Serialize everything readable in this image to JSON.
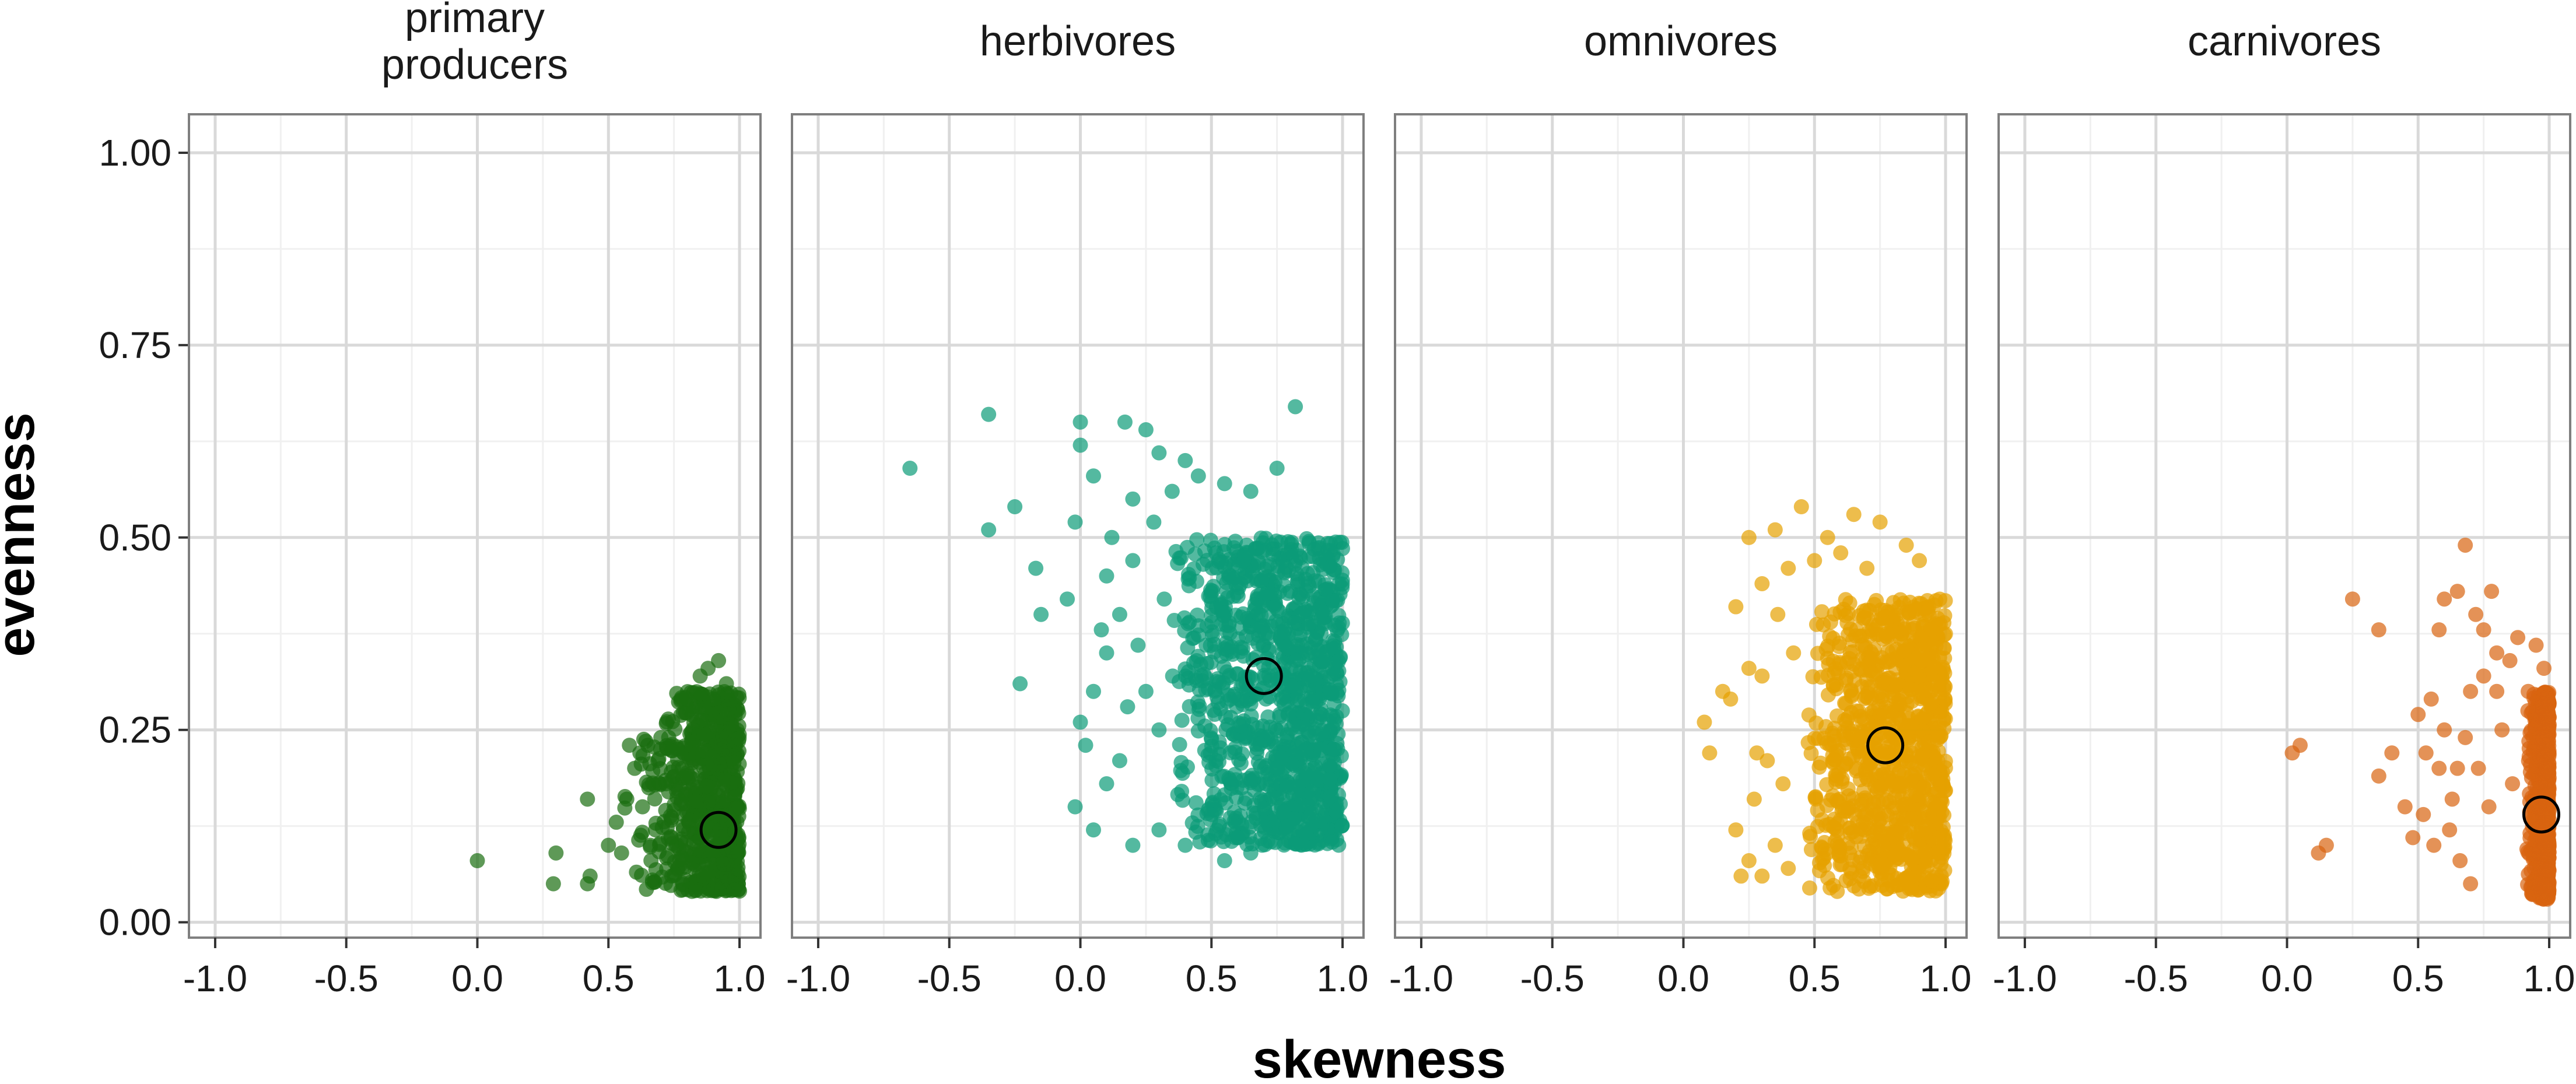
{
  "chart_data": {
    "type": "scatter",
    "xlabel": "skewness",
    "ylabel": "evenness",
    "xlim": [
      -1.1,
      1.08
    ],
    "ylim": [
      -0.02,
      1.05
    ],
    "x_ticks": [
      -1.0,
      -0.5,
      0.0,
      0.5,
      1.0
    ],
    "x_tick_labels": [
      "-1.0",
      "-0.5",
      "0.0",
      "0.5",
      "1.0"
    ],
    "y_ticks": [
      0.0,
      0.25,
      0.5,
      0.75,
      1.0
    ],
    "y_tick_labels": [
      "0.00",
      "0.25",
      "0.50",
      "0.75",
      "1.00"
    ],
    "grid": true,
    "point_opacity": 0.7,
    "facets": [
      {
        "title_lines": [
          "primary",
          "producers"
        ],
        "color": "#1a6e0f",
        "mean": {
          "x": 0.92,
          "y": 0.12
        },
        "cloud": {
          "n": 700,
          "x_min": 0.55,
          "x_max": 1.0,
          "y_min": 0.04,
          "y_max": 0.3,
          "x_skew": 0.4
        },
        "points": [
          [
            0.0,
            0.08
          ],
          [
            0.3,
            0.09
          ],
          [
            0.29,
            0.05
          ],
          [
            0.42,
            0.16
          ],
          [
            0.43,
            0.06
          ],
          [
            0.42,
            0.05
          ],
          [
            0.5,
            0.1
          ],
          [
            0.53,
            0.13
          ],
          [
            0.55,
            0.09
          ],
          [
            0.57,
            0.16
          ],
          [
            0.6,
            0.2
          ],
          [
            0.58,
            0.23
          ],
          [
            0.62,
            0.22
          ],
          [
            0.65,
            0.23
          ],
          [
            0.7,
            0.24
          ],
          [
            0.73,
            0.24
          ],
          [
            0.8,
            0.29
          ],
          [
            0.85,
            0.32
          ],
          [
            0.88,
            0.33
          ],
          [
            0.92,
            0.34
          ],
          [
            0.95,
            0.31
          ],
          [
            0.9,
            0.29
          ],
          [
            0.68,
            0.12
          ],
          [
            0.66,
            0.1
          ],
          [
            0.72,
            0.18
          ],
          [
            0.63,
            0.15
          ]
        ]
      },
      {
        "title_lines": [
          "herbivores"
        ],
        "color": "#0b9b78",
        "mean": {
          "x": 0.7,
          "y": 0.32
        },
        "cloud": {
          "n": 1100,
          "x_min": 0.35,
          "x_max": 1.0,
          "y_min": 0.1,
          "y_max": 0.5,
          "x_skew": 0.6
        },
        "points": [
          [
            -0.65,
            0.59
          ],
          [
            -0.35,
            0.66
          ],
          [
            -0.35,
            0.51
          ],
          [
            -0.25,
            0.54
          ],
          [
            -0.17,
            0.46
          ],
          [
            -0.15,
            0.4
          ],
          [
            -0.23,
            0.31
          ],
          [
            0.0,
            0.65
          ],
          [
            0.0,
            0.62
          ],
          [
            0.05,
            0.58
          ],
          [
            0.17,
            0.65
          ],
          [
            0.25,
            0.64
          ],
          [
            0.3,
            0.61
          ],
          [
            0.82,
            0.67
          ],
          [
            -0.02,
            0.52
          ],
          [
            -0.05,
            0.42
          ],
          [
            0.0,
            0.26
          ],
          [
            0.02,
            0.23
          ],
          [
            -0.02,
            0.15
          ],
          [
            0.05,
            0.12
          ],
          [
            0.1,
            0.18
          ],
          [
            0.15,
            0.21
          ],
          [
            0.2,
            0.1
          ],
          [
            0.3,
            0.12
          ],
          [
            0.4,
            0.1
          ],
          [
            0.5,
            0.14
          ],
          [
            0.55,
            0.08
          ],
          [
            0.6,
            0.11
          ],
          [
            0.65,
            0.09
          ],
          [
            0.1,
            0.35
          ],
          [
            0.15,
            0.4
          ],
          [
            0.2,
            0.47
          ],
          [
            0.05,
            0.3
          ],
          [
            0.25,
            0.3
          ],
          [
            0.3,
            0.25
          ],
          [
            0.2,
            0.55
          ],
          [
            0.1,
            0.45
          ],
          [
            0.35,
            0.56
          ],
          [
            0.45,
            0.58
          ],
          [
            0.55,
            0.57
          ],
          [
            0.65,
            0.56
          ],
          [
            0.75,
            0.59
          ],
          [
            0.4,
            0.6
          ],
          [
            0.12,
            0.5
          ],
          [
            0.28,
            0.52
          ],
          [
            0.08,
            0.38
          ],
          [
            0.32,
            0.42
          ],
          [
            0.18,
            0.28
          ],
          [
            0.22,
            0.36
          ]
        ]
      },
      {
        "title_lines": [
          "omnivores"
        ],
        "color": "#e6a100",
        "mean": {
          "x": 0.77,
          "y": 0.23
        },
        "cloud": {
          "n": 1000,
          "x_min": 0.45,
          "x_max": 1.0,
          "y_min": 0.04,
          "y_max": 0.42,
          "x_skew": 0.55
        },
        "points": [
          [
            0.08,
            0.26
          ],
          [
            0.1,
            0.22
          ],
          [
            0.15,
            0.3
          ],
          [
            0.2,
            0.41
          ],
          [
            0.25,
            0.5
          ],
          [
            0.3,
            0.44
          ],
          [
            0.35,
            0.51
          ],
          [
            0.45,
            0.54
          ],
          [
            0.55,
            0.5
          ],
          [
            0.65,
            0.53
          ],
          [
            0.75,
            0.52
          ],
          [
            0.85,
            0.49
          ],
          [
            0.9,
            0.47
          ],
          [
            0.2,
            0.12
          ],
          [
            0.25,
            0.08
          ],
          [
            0.22,
            0.06
          ],
          [
            0.3,
            0.06
          ],
          [
            0.35,
            0.1
          ],
          [
            0.4,
            0.07
          ],
          [
            0.3,
            0.32
          ],
          [
            0.25,
            0.33
          ],
          [
            0.18,
            0.29
          ],
          [
            0.4,
            0.46
          ],
          [
            0.5,
            0.47
          ],
          [
            0.32,
            0.21
          ],
          [
            0.28,
            0.22
          ],
          [
            0.38,
            0.18
          ],
          [
            0.42,
            0.35
          ],
          [
            0.36,
            0.4
          ],
          [
            0.6,
            0.48
          ],
          [
            0.7,
            0.46
          ],
          [
            0.27,
            0.16
          ]
        ]
      },
      {
        "title_lines": [
          "carnivores"
        ],
        "color": "#d9640f",
        "mean": {
          "x": 0.97,
          "y": 0.14
        },
        "cloud": {
          "n": 800,
          "x_min": 0.9,
          "x_max": 1.0,
          "y_min": 0.03,
          "y_max": 0.3,
          "x_skew": 0.3
        },
        "points": [
          [
            0.02,
            0.22
          ],
          [
            0.05,
            0.23
          ],
          [
            0.12,
            0.09
          ],
          [
            0.15,
            0.1
          ],
          [
            0.25,
            0.42
          ],
          [
            0.35,
            0.38
          ],
          [
            0.35,
            0.19
          ],
          [
            0.4,
            0.22
          ],
          [
            0.45,
            0.15
          ],
          [
            0.5,
            0.27
          ],
          [
            0.53,
            0.22
          ],
          [
            0.55,
            0.29
          ],
          [
            0.58,
            0.38
          ],
          [
            0.6,
            0.42
          ],
          [
            0.65,
            0.43
          ],
          [
            0.68,
            0.49
          ],
          [
            0.72,
            0.4
          ],
          [
            0.75,
            0.38
          ],
          [
            0.78,
            0.43
          ],
          [
            0.8,
            0.35
          ],
          [
            0.62,
            0.12
          ],
          [
            0.66,
            0.08
          ],
          [
            0.7,
            0.05
          ],
          [
            0.56,
            0.1
          ],
          [
            0.52,
            0.14
          ],
          [
            0.48,
            0.11
          ],
          [
            0.6,
            0.25
          ],
          [
            0.65,
            0.2
          ],
          [
            0.7,
            0.3
          ],
          [
            0.75,
            0.32
          ],
          [
            0.8,
            0.3
          ],
          [
            0.85,
            0.34
          ],
          [
            0.88,
            0.37
          ],
          [
            0.92,
            0.3
          ],
          [
            0.95,
            0.36
          ],
          [
            0.98,
            0.33
          ],
          [
            0.63,
            0.16
          ],
          [
            0.68,
            0.24
          ],
          [
            0.58,
            0.2
          ],
          [
            0.73,
            0.2
          ],
          [
            0.77,
            0.15
          ],
          [
            0.82,
            0.25
          ],
          [
            0.86,
            0.18
          ]
        ]
      }
    ]
  }
}
